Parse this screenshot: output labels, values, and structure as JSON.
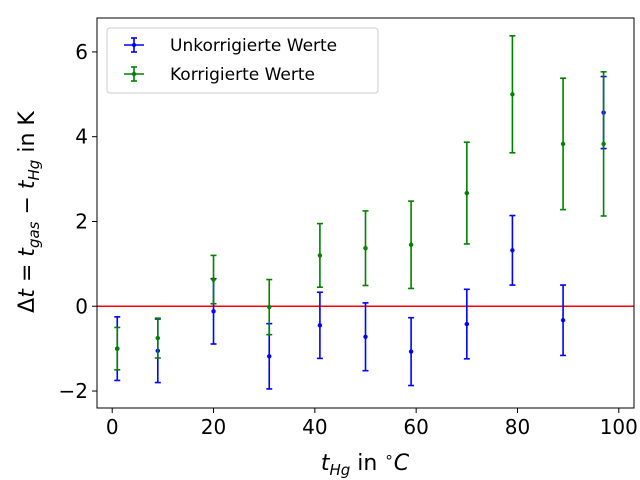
{
  "chart_data": {
    "type": "scatter",
    "xlabel": "t_Hg in °C",
    "ylabel": "Δt = t_gas − t_Hg in K",
    "xlim": [
      -3,
      103
    ],
    "ylim": [
      -2.4,
      6.8
    ],
    "xticks": [
      0,
      20,
      40,
      60,
      80,
      100
    ],
    "yticks": [
      -2,
      0,
      2,
      4,
      6
    ],
    "grid": false,
    "legend_position": "top-left",
    "reference_line": {
      "y": 0,
      "color": "#ff0000"
    },
    "series": [
      {
        "name": "Unkorrigierte Werte",
        "color": "#0000ff",
        "points": [
          {
            "x": 1,
            "y": -1.0,
            "yerr": 0.75,
            "xerr": 0.4
          },
          {
            "x": 9,
            "y": -1.05,
            "yerr": 0.75,
            "xerr": 0.4
          },
          {
            "x": 20,
            "y": -0.12,
            "yerr": 0.77,
            "xerr": 0.4
          },
          {
            "x": 31,
            "y": -1.18,
            "yerr": 0.77,
            "xerr": 0.4
          },
          {
            "x": 41,
            "y": -0.45,
            "yerr": 0.78,
            "xerr": 0.4
          },
          {
            "x": 50,
            "y": -0.72,
            "yerr": 0.8,
            "xerr": 0.4
          },
          {
            "x": 59,
            "y": -1.07,
            "yerr": 0.8,
            "xerr": 0.4
          },
          {
            "x": 70,
            "y": -0.42,
            "yerr": 0.82,
            "xerr": 0.4
          },
          {
            "x": 79,
            "y": 1.32,
            "yerr": 0.82,
            "xerr": 0.4
          },
          {
            "x": 89,
            "y": -0.33,
            "yerr": 0.83,
            "xerr": 0.4
          },
          {
            "x": 97,
            "y": 4.57,
            "yerr": 0.85,
            "xerr": 0.4
          }
        ]
      },
      {
        "name": "Korrigierte Werte",
        "color": "#008000",
        "points": [
          {
            "x": 1,
            "y": -1.0,
            "yerr": 0.5,
            "xerr": 0.4
          },
          {
            "x": 9,
            "y": -0.75,
            "yerr": 0.47,
            "xerr": 0.4
          },
          {
            "x": 20,
            "y": 0.63,
            "yerr": 0.57,
            "xerr": 0.4
          },
          {
            "x": 31,
            "y": -0.02,
            "yerr": 0.65,
            "xerr": 0.4
          },
          {
            "x": 41,
            "y": 1.2,
            "yerr": 0.75,
            "xerr": 0.4
          },
          {
            "x": 50,
            "y": 1.37,
            "yerr": 0.88,
            "xerr": 0.4
          },
          {
            "x": 59,
            "y": 1.45,
            "yerr": 1.03,
            "xerr": 0.4
          },
          {
            "x": 70,
            "y": 2.67,
            "yerr": 1.2,
            "xerr": 0.4
          },
          {
            "x": 79,
            "y": 5.0,
            "yerr": 1.38,
            "xerr": 0.4
          },
          {
            "x": 89,
            "y": 3.83,
            "yerr": 1.55,
            "xerr": 0.4
          },
          {
            "x": 97,
            "y": 3.83,
            "yerr": 1.7,
            "xerr": 0.4
          }
        ]
      }
    ]
  }
}
